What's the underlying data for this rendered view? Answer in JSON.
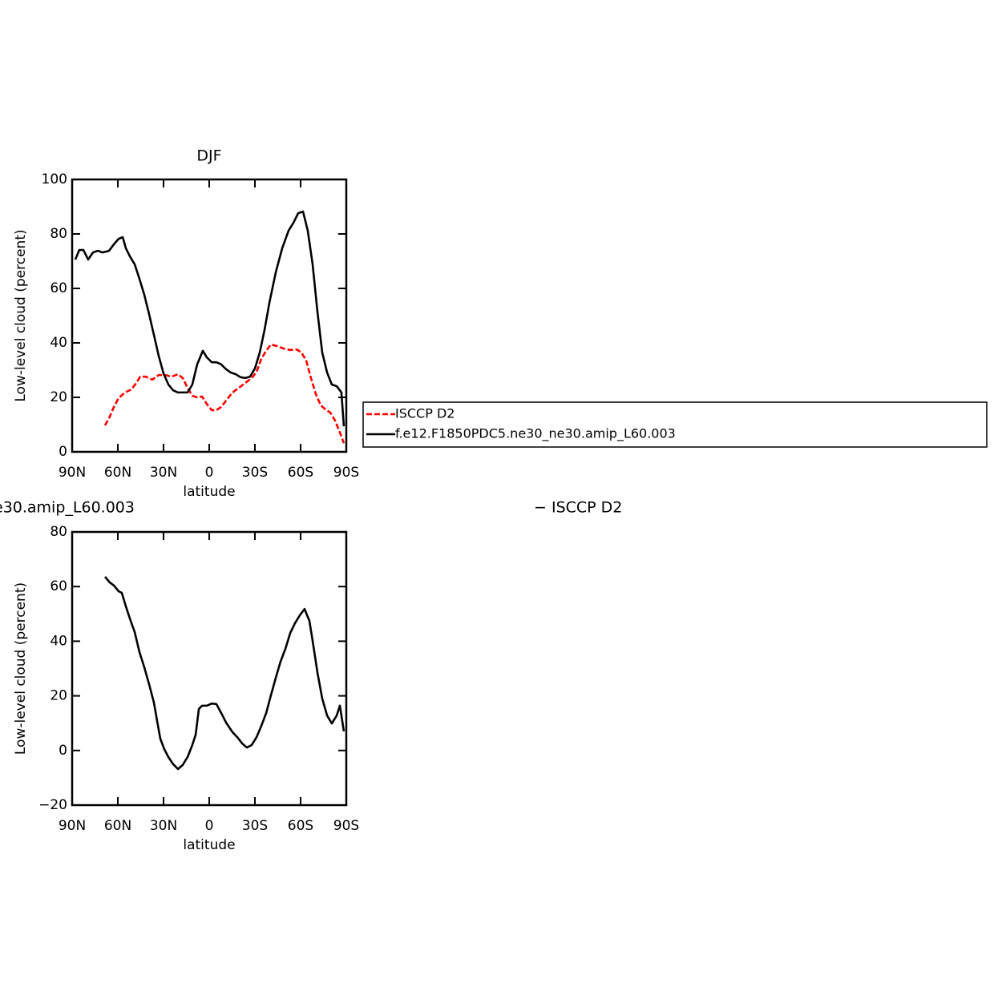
{
  "chart_data": [
    {
      "type": "line",
      "title": "DJF",
      "x_label": "latitude",
      "y_label": "Low-level cloud (percent)",
      "xlim": [
        90,
        -90
      ],
      "xticks": [
        {
          "value": 90,
          "label": "90N"
        },
        {
          "value": 60,
          "label": "60N"
        },
        {
          "value": 30,
          "label": "30N"
        },
        0,
        {
          "value": -30,
          "label": "30S"
        },
        {
          "value": -60,
          "label": "60S"
        },
        {
          "value": -90,
          "label": "90S"
        }
      ],
      "ylim": [
        0,
        100
      ],
      "yticks": [
        0,
        20,
        40,
        60,
        80,
        100
      ],
      "series": [
        {
          "name": "ISCCP D2",
          "color": "#ff0000",
          "dash": true,
          "x": [
            68.4,
            65.3,
            62.6,
            59.5,
            55.3,
            51.1,
            47.9,
            45.3,
            41.6,
            37.4,
            33.2,
            28.9,
            24.7,
            20.5,
            17.4,
            14.2,
            11.1,
            7.9,
            4.7,
            1.6,
            -1.6,
            -4.7,
            -7.9,
            -11.1,
            -15.3,
            -19.5,
            -23.7,
            -27.9,
            -31.1,
            -34.2,
            -37.4,
            -40.5,
            -44.7,
            -48.9,
            -53.2,
            -57.4,
            -60.5,
            -63.7,
            -66.8,
            -70.0,
            -73.2,
            -76.3,
            -79.5,
            -82.6,
            -85.8,
            -88.4
          ],
          "values": [
            9.7,
            12.9,
            16.5,
            19.7,
            21.8,
            22.9,
            25.3,
            27.6,
            27.6,
            26.5,
            28.2,
            28.2,
            27.6,
            28.5,
            27.1,
            23.5,
            20.6,
            20.0,
            20.3,
            17.6,
            15.3,
            15.3,
            16.5,
            18.8,
            21.8,
            23.5,
            25.3,
            27.1,
            29.4,
            34.1,
            37.1,
            39.4,
            38.8,
            37.9,
            37.4,
            37.6,
            36.5,
            33.5,
            27.1,
            21.2,
            17.1,
            15.6,
            14.4,
            11.5,
            7.1,
            3.2
          ]
        },
        {
          "name": "f.e12.F1850PDC5.ne30_ne30.amip_L60.003",
          "color": "#000000",
          "dash": false,
          "x": [
            87.9,
            85.3,
            82.6,
            79.5,
            76.3,
            73.2,
            70.0,
            65.8,
            62.6,
            59.5,
            56.8,
            54.7,
            52.1,
            48.9,
            45.8,
            42.6,
            39.5,
            36.3,
            33.2,
            30.0,
            26.8,
            23.7,
            20.5,
            17.4,
            14.2,
            11.1,
            7.9,
            4.2,
            1.6,
            -1.6,
            -4.7,
            -7.9,
            -11.1,
            -14.2,
            -17.4,
            -20.5,
            -23.7,
            -26.8,
            -30.0,
            -33.2,
            -36.3,
            -39.5,
            -43.7,
            -47.9,
            -52.1,
            -55.3,
            -58.4,
            -61.6,
            -64.7,
            -67.9,
            -71.1,
            -74.2,
            -77.4,
            -80.5,
            -83.7,
            -86.8,
            -88.4
          ],
          "values": [
            70.6,
            74.1,
            74.1,
            70.6,
            73.2,
            73.8,
            73.2,
            73.8,
            76.2,
            78.2,
            78.8,
            74.7,
            71.8,
            68.8,
            63.5,
            57.6,
            50.6,
            42.9,
            35.3,
            28.8,
            24.7,
            22.6,
            21.8,
            21.8,
            21.8,
            24.7,
            32.1,
            37.1,
            34.7,
            32.9,
            32.9,
            32.1,
            30.3,
            29.1,
            28.5,
            27.4,
            27.1,
            27.6,
            30.6,
            36.5,
            44.7,
            54.7,
            65.9,
            74.7,
            81.2,
            84.1,
            87.6,
            88.2,
            81.2,
            68.8,
            51.2,
            36.5,
            29.1,
            24.7,
            24.1,
            21.8,
            9.4
          ]
        }
      ]
    },
    {
      "type": "line",
      "title": "e30.amip_L60.003",
      "annotation": "− ISCCP D2",
      "x_label": "latitude",
      "y_label": "Low-level cloud (percent)",
      "xlim": [
        90,
        -90
      ],
      "xticks": [
        {
          "value": 90,
          "label": "90N"
        },
        {
          "value": 60,
          "label": "60N"
        },
        {
          "value": 30,
          "label": "30N"
        },
        0,
        {
          "value": -30,
          "label": "30S"
        },
        {
          "value": -60,
          "label": "60S"
        },
        {
          "value": -90,
          "label": "90S"
        }
      ],
      "ylim": [
        -20,
        80
      ],
      "yticks": [
        {
          "value": -20,
          "label": "−20"
        },
        0,
        20,
        40,
        60,
        80
      ],
      "series": [
        {
          "color": "#000000",
          "dash": false,
          "x": [
            68.4,
            65.3,
            62.6,
            59.5,
            57.4,
            54.7,
            52.1,
            48.9,
            45.8,
            42.6,
            39.5,
            36.3,
            34.2,
            32.1,
            29.5,
            26.8,
            23.7,
            20.5,
            17.4,
            14.2,
            11.1,
            8.9,
            6.8,
            4.7,
            1.6,
            -1.6,
            -4.7,
            -7.9,
            -11.1,
            -15.3,
            -18.4,
            -21.6,
            -24.7,
            -27.9,
            -31.1,
            -34.2,
            -37.4,
            -40.5,
            -43.7,
            -46.8,
            -50.0,
            -53.2,
            -56.3,
            -59.5,
            -62.6,
            -65.8,
            -67.9,
            -71.1,
            -74.2,
            -77.4,
            -80.5,
            -83.7,
            -85.8,
            -88.4
          ],
          "values": [
            63.6,
            61.5,
            60.4,
            58.3,
            57.7,
            52.7,
            48.3,
            43.3,
            36.0,
            30.4,
            24.3,
            17.5,
            10.8,
            4.3,
            0.5,
            -2.4,
            -5.0,
            -6.8,
            -5.3,
            -2.4,
            2.0,
            5.8,
            15.2,
            16.4,
            16.4,
            17.2,
            17.0,
            13.7,
            10.2,
            6.7,
            4.9,
            2.6,
            1.1,
            2.0,
            4.9,
            9.0,
            13.7,
            20.2,
            26.6,
            32.5,
            37.2,
            43.0,
            46.6,
            49.5,
            51.8,
            47.4,
            40.1,
            28.4,
            19.0,
            12.8,
            9.9,
            12.8,
            16.4,
            7.0
          ]
        }
      ]
    }
  ]
}
